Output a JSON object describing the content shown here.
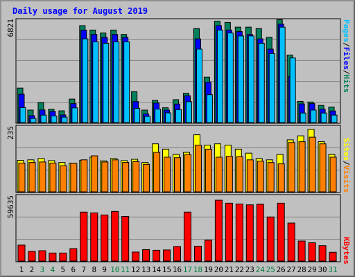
{
  "title": "Daily usage for August 2019",
  "colors": {
    "hits": "#00c0ff",
    "files": "#0000ff",
    "pages": "#00805c",
    "visits": "#ffff00",
    "sites": "#ff8000",
    "kbytes": "#ff0000",
    "weekend_label": "#008040",
    "weekday_label": "#000000"
  },
  "chart_data": [
    {
      "type": "bar",
      "panel": "hits-files-pages",
      "ymax_label": "6821",
      "ylim": [
        0,
        6821
      ],
      "legend": [
        "Pages",
        "/",
        "Files",
        "/",
        "Hits"
      ],
      "categories": [
        "1",
        "2",
        "3",
        "4",
        "5",
        "6",
        "7",
        "8",
        "9",
        "10",
        "11",
        "12",
        "13",
        "14",
        "15",
        "16",
        "17",
        "18",
        "19",
        "20",
        "21",
        "22",
        "23",
        "24",
        "25",
        "26",
        "27",
        "28",
        "29",
        "30",
        "31"
      ],
      "weekend_days": [
        "3",
        "4",
        "10",
        "11",
        "17",
        "18",
        "24",
        "25",
        "31"
      ],
      "series": [
        {
          "name": "Hits",
          "values": [
            1020,
            280,
            510,
            450,
            370,
            1000,
            5700,
            5500,
            5400,
            5500,
            5500,
            970,
            420,
            920,
            660,
            880,
            1420,
            5000,
            1900,
            6300,
            6100,
            5900,
            5900,
            5400,
            4700,
            6500,
            4400,
            650,
            850,
            650,
            510
          ]
        },
        {
          "name": "Files",
          "values": [
            1930,
            470,
            860,
            760,
            520,
            1290,
            6300,
            6000,
            5800,
            6000,
            5800,
            1430,
            590,
            1330,
            850,
            1260,
            1830,
            5700,
            2750,
            6600,
            6300,
            6200,
            6000,
            5700,
            5000,
            6700,
            3150,
            1270,
            1290,
            920,
            790
          ]
        },
        {
          "name": "Pages",
          "values": [
            2350,
            850,
            1360,
            910,
            800,
            1600,
            6600,
            6300,
            6100,
            6300,
            6000,
            2100,
            850,
            1510,
            1010,
            1560,
            2000,
            6400,
            3100,
            6900,
            6820,
            6500,
            6500,
            6400,
            5800,
            7000,
            4600,
            1440,
            1400,
            1170,
            1060
          ]
        }
      ]
    },
    {
      "type": "bar",
      "panel": "visits-sites",
      "ymax_label": "235",
      "ylim": [
        0,
        235
      ],
      "legend": [
        "Sites",
        "/",
        "Visits"
      ],
      "categories": [
        "1",
        "2",
        "3",
        "4",
        "5",
        "6",
        "7",
        "8",
        "9",
        "10",
        "11",
        "12",
        "13",
        "14",
        "15",
        "16",
        "17",
        "18",
        "19",
        "20",
        "21",
        "22",
        "23",
        "24",
        "25",
        "26",
        "27",
        "28",
        "29",
        "30",
        "31"
      ],
      "series": [
        {
          "name": "Visits",
          "values": [
            118,
            120,
            125,
            117,
            110,
            107,
            118,
            130,
            116,
            125,
            117,
            122,
            110,
            180,
            160,
            140,
            148,
            214,
            175,
            180,
            175,
            160,
            145,
            125,
            120,
            140,
            195,
            210,
            235,
            188,
            140
          ]
        },
        {
          "name": "Sites",
          "values": [
            108,
            110,
            112,
            108,
            98,
            107,
            120,
            135,
            112,
            120,
            110,
            113,
            103,
            148,
            130,
            128,
            140,
            175,
            160,
            130,
            133,
            132,
            120,
            115,
            110,
            105,
            185,
            188,
            205,
            180,
            130
          ]
        }
      ]
    },
    {
      "type": "bar",
      "panel": "kbytes",
      "ymax_label": "59635",
      "ylim": [
        0,
        59635
      ],
      "legend": [
        "KBytes"
      ],
      "categories": [
        "1",
        "2",
        "3",
        "4",
        "5",
        "6",
        "7",
        "8",
        "9",
        "10",
        "11",
        "12",
        "13",
        "14",
        "15",
        "16",
        "17",
        "18",
        "19",
        "20",
        "21",
        "22",
        "23",
        "24",
        "25",
        "26",
        "27",
        "28",
        "29",
        "30",
        "31"
      ],
      "series": [
        {
          "name": "KBytes",
          "values": [
            14500,
            8800,
            9400,
            7300,
            7300,
            11300,
            44400,
            43700,
            41800,
            45000,
            40500,
            8200,
            10400,
            9800,
            10100,
            13200,
            44400,
            13500,
            18900,
            55200,
            52500,
            51700,
            51000,
            51500,
            40000,
            52500,
            34500,
            18200,
            16600,
            14000,
            8000
          ]
        }
      ]
    }
  ]
}
